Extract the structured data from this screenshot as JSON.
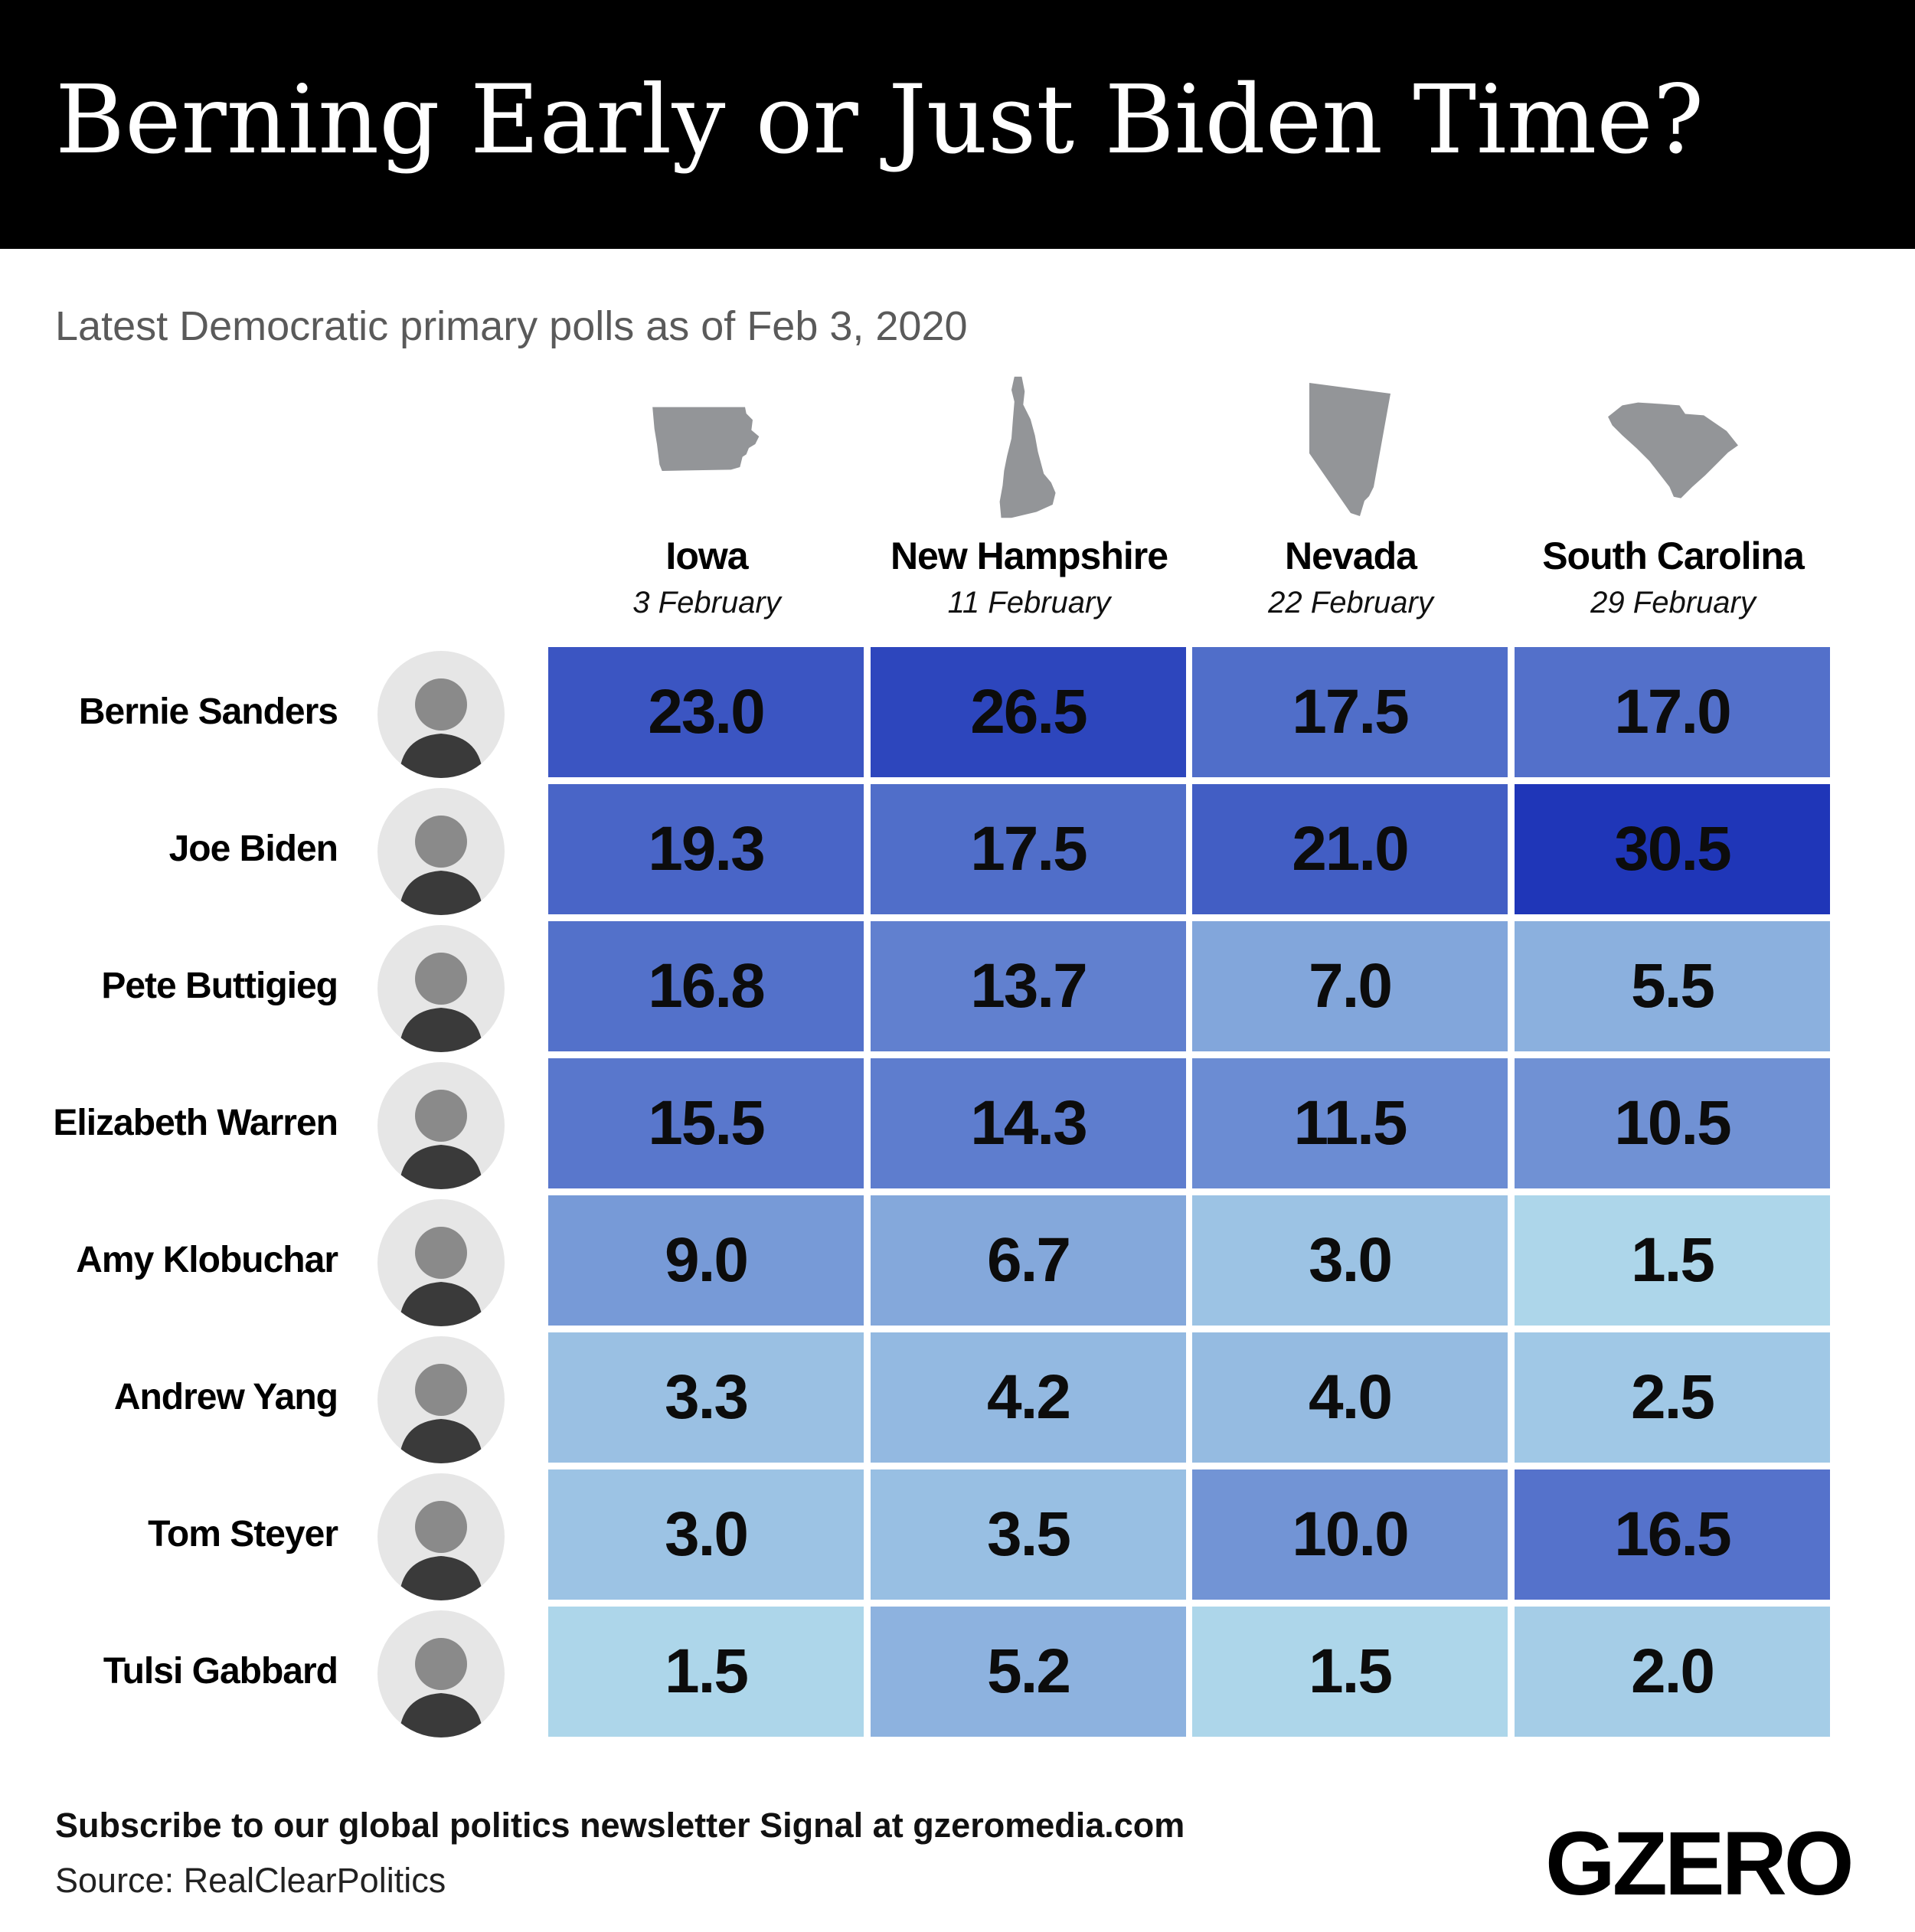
{
  "title": "Berning Early or Just Biden Time?",
  "subtitle": "Latest Democratic primary polls as of Feb 3, 2020",
  "chart_data": {
    "type": "heatmap",
    "title": "Berning Early or Just Biden Time?",
    "subtitle": "Latest Democratic primary polls as of Feb 3, 2020",
    "columns": [
      {
        "state": "Iowa",
        "date": "3 February",
        "icon": "iowa-map-icon"
      },
      {
        "state": "New Hampshire",
        "date": "11 February",
        "icon": "new-hampshire-map-icon"
      },
      {
        "state": "Nevada",
        "date": "22 February",
        "icon": "nevada-map-icon"
      },
      {
        "state": "South Carolina",
        "date": "29 February",
        "icon": "south-carolina-map-icon"
      }
    ],
    "rows": [
      {
        "candidate": "Bernie Sanders",
        "values": [
          "23.0",
          "26.5",
          "17.5",
          "17.0"
        ]
      },
      {
        "candidate": "Joe Biden",
        "values": [
          "19.3",
          "17.5",
          "21.0",
          "30.5"
        ]
      },
      {
        "candidate": "Pete Buttigieg",
        "values": [
          "16.8",
          "13.7",
          "7.0",
          "5.5"
        ]
      },
      {
        "candidate": "Elizabeth Warren",
        "values": [
          "15.5",
          "14.3",
          "11.5",
          "10.5"
        ]
      },
      {
        "candidate": "Amy Klobuchar",
        "values": [
          "9.0",
          "6.7",
          "3.0",
          "1.5"
        ]
      },
      {
        "candidate": "Andrew Yang",
        "values": [
          "3.3",
          "4.2",
          "4.0",
          "2.5"
        ]
      },
      {
        "candidate": "Tom Steyer",
        "values": [
          "3.0",
          "3.5",
          "10.0",
          "16.5"
        ]
      },
      {
        "candidate": "Tulsi Gabbard",
        "values": [
          "1.5",
          "5.2",
          "1.5",
          "2.0"
        ]
      }
    ],
    "color_scale": {
      "low": "#add6ea",
      "high": "#1f36b8"
    },
    "state_shape_color": "#939598"
  },
  "footer": {
    "subscribe": "Subscribe to our global politics newsletter Signal at gzeromedia.com",
    "source": "Source: RealClearPolitics",
    "logo": "GZERO"
  }
}
